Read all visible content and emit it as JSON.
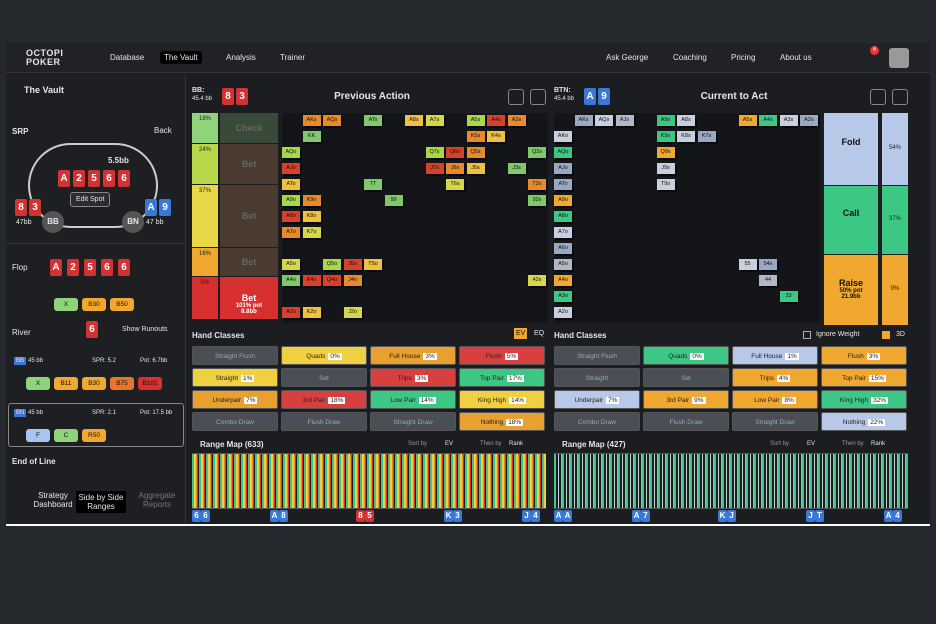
{
  "nav": {
    "logo": "OCTOPI POKER",
    "items": [
      "Database",
      "The Vault",
      "Analysis",
      "Trainer"
    ],
    "right": [
      "Ask George",
      "Coaching",
      "Pricing",
      "About us"
    ],
    "badge": "6"
  },
  "sidebar": {
    "vault": "The Vault",
    "srp": "SRP",
    "back": "Back",
    "pot": "5.5bb",
    "board": [
      "A",
      "2",
      "5",
      "6",
      "6"
    ],
    "p1": {
      "cards": [
        "8",
        "3"
      ],
      "stack": "47bb",
      "pos": "BB"
    },
    "p2": {
      "cards": [
        "A",
        "9"
      ],
      "stack": "47 bb",
      "pos": "BN"
    },
    "edit": "Edit Spot",
    "flop": "Flop",
    "flop_cards": [
      "A",
      "2",
      "5",
      "6",
      "6"
    ],
    "flop_actions": [
      "X",
      "B30",
      "B50"
    ],
    "river": "River",
    "river_card": "6",
    "runouts": "Show Runouts",
    "node1": {
      "pos": "BB",
      "stack": "45 bb",
      "spr": "SPR: 5.2",
      "pot": "Pot: 6.7bb",
      "actions": [
        "X",
        "B11",
        "B30",
        "B75",
        "B101"
      ]
    },
    "node2": {
      "pos": "BN",
      "stack": "45 bb",
      "spr": "SPR: 2.1",
      "pot": "Pot: 17.5 bb",
      "actions": [
        "F",
        "C",
        "R50"
      ]
    },
    "end": "End of Line",
    "tabs": [
      "Strategy Dashboard",
      "Side by Side Ranges",
      "Aggregate Reports"
    ]
  },
  "left": {
    "pos": "BB:",
    "stack": "45.4 bb",
    "cards": [
      "8",
      "3"
    ],
    "title": "Previous Action",
    "strategy": [
      {
        "pct": "18%",
        "action": "Check"
      },
      {
        "pct": "24%",
        "action": "Bet"
      },
      {
        "pct": "37%",
        "action": "Bet"
      },
      {
        "pct": "16%",
        "action": "Bet"
      },
      {
        "pct": "5%",
        "action": "Bet",
        "size": "101% pot",
        "bb": "8.8bb"
      }
    ],
    "grid": [
      "KK",
      "AKs",
      "AQs",
      "ATs",
      "A8s",
      "A7s",
      "A5s",
      "A4s",
      "A3s",
      "AQo",
      "Q7s",
      "AJo",
      "K5s",
      "Q6s",
      "J7s",
      "ATo",
      "K4s",
      "Q5s",
      "TT",
      "A9o",
      "J6s",
      "A8o",
      "99",
      "T6s",
      "A7o",
      "K9o",
      "K8o",
      "J5s",
      "K7o",
      "J3s",
      "A5o",
      "Q5o",
      "J5o",
      "T5o",
      "A4o",
      "K4o",
      "Q4o",
      "J4o",
      "A2o",
      "K2o",
      "J2o",
      "Q2s",
      "T2s",
      "92s",
      "42s"
    ],
    "hand_title": "Hand Classes",
    "toggles": [
      "EV",
      "EQ"
    ],
    "hand_classes": [
      {
        "name": "Straight Flush"
      },
      {
        "name": "Quads",
        "pct": "0%"
      },
      {
        "name": "Full House",
        "pct": "3%"
      },
      {
        "name": "Flush",
        "pct": "5%"
      },
      {
        "name": "Straight",
        "pct": "1%"
      },
      {
        "name": "Set"
      },
      {
        "name": "Trips",
        "pct": "3%"
      },
      {
        "name": "Top Pair",
        "pct": "17%"
      },
      {
        "name": "Underpair",
        "pct": "7%"
      },
      {
        "name": "3rd Pair",
        "pct": "18%"
      },
      {
        "name": "Low Pair",
        "pct": "14%"
      },
      {
        "name": "King High",
        "pct": "14%"
      },
      {
        "name": "Combo Draw"
      },
      {
        "name": "Flush Draw"
      },
      {
        "name": "Straight Draw"
      },
      {
        "name": "Nothing",
        "pct": "18%"
      }
    ],
    "range_title": "Range Map (633)",
    "sort": [
      "Sort by",
      "EV",
      "Then by",
      "Rank"
    ],
    "axis_cards": [
      [
        "6",
        "6"
      ],
      [
        "A",
        "8"
      ],
      [
        "8",
        "5"
      ],
      [
        "K",
        "3"
      ],
      [
        "J",
        "4"
      ]
    ]
  },
  "right": {
    "pos": "BTN:",
    "stack": "45.4 bb",
    "cards": [
      "A",
      "9"
    ],
    "title": "Current to Act",
    "strategy": [
      {
        "pct": "54%",
        "action": "Fold"
      },
      {
        "pct": "37%",
        "action": "Call"
      },
      {
        "pct": "9%",
        "action": "Raise",
        "size": "50% pot",
        "bb": "21.9bb"
      }
    ],
    "grid": [
      "AKs",
      "AQs",
      "AJs",
      "A9s",
      "A8s",
      "A5s",
      "A4s",
      "A3s",
      "A2s",
      "AKo",
      "AQo",
      "K9s",
      "K8s",
      "K7s",
      "AJo",
      "Q9s",
      "ATo",
      "J9s",
      "A9o",
      "T9s",
      "A8o",
      "A7o",
      "A6o",
      "A5o",
      "A4o",
      "A3o",
      "A2o",
      "55",
      "54s",
      "44",
      "33"
    ],
    "hand_title": "Hand Classes",
    "ignore": "Ignore Weight",
    "three_d": "3D",
    "hand_classes": [
      {
        "name": "Straight Flush"
      },
      {
        "name": "Quads",
        "pct": "0%"
      },
      {
        "name": "Full House",
        "pct": "1%"
      },
      {
        "name": "Flush",
        "pct": "3%"
      },
      {
        "name": "Straight"
      },
      {
        "name": "Set"
      },
      {
        "name": "Trips",
        "pct": "4%"
      },
      {
        "name": "Top Pair",
        "pct": "15%"
      },
      {
        "name": "Underpair",
        "pct": "7%"
      },
      {
        "name": "3rd Pair",
        "pct": "9%"
      },
      {
        "name": "Low Pair",
        "pct": "8%"
      },
      {
        "name": "King High",
        "pct": "32%"
      },
      {
        "name": "Combo Draw"
      },
      {
        "name": "Flush Draw"
      },
      {
        "name": "Straight Draw"
      },
      {
        "name": "Nothing",
        "pct": "22%"
      }
    ],
    "range_title": "Range Map (427)",
    "sort": [
      "Sort by",
      "EV",
      "Then by",
      "Rank"
    ],
    "axis_cards": [
      [
        "A",
        "A"
      ],
      [
        "A",
        "7"
      ],
      [
        "K",
        "J"
      ],
      [
        "J",
        "T"
      ],
      [
        "A",
        "4"
      ]
    ]
  }
}
